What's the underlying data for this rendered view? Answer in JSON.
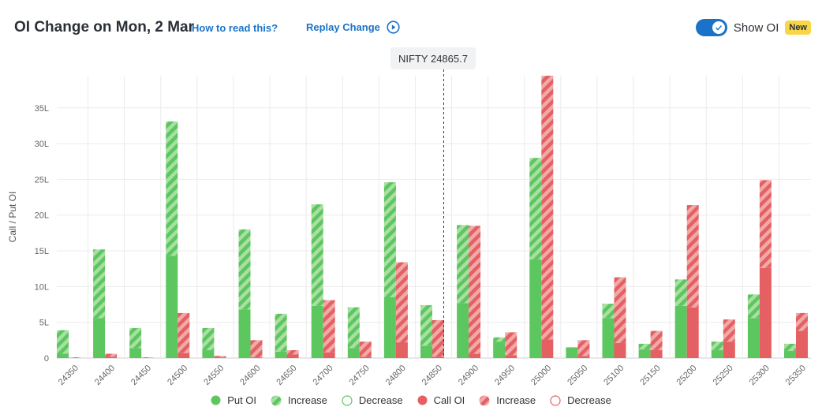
{
  "header": {
    "title": "OI Change on Mon, 2 Mar",
    "how_to_label": "How to read this?",
    "replay_label": "Replay Change",
    "show_oi_label": "Show OI",
    "new_badge": "New",
    "show_oi_on": true
  },
  "spot": {
    "label": "NIFTY 24865.7",
    "value": 24865.7
  },
  "colors": {
    "put": "#5cc65f",
    "put_light": "#a9dfa3",
    "call": "#e56062",
    "call_light": "#f0a9a9",
    "grid": "#ebebeb"
  },
  "chart_data": {
    "type": "bar",
    "ylabel": "Call / Put OI",
    "y_unit": "L",
    "ylim": [
      0,
      39.5
    ],
    "yticks": [
      0,
      5,
      10,
      15,
      20,
      25,
      30,
      35
    ],
    "ytick_labels": [
      "0",
      "5L",
      "10L",
      "15L",
      "20L",
      "25L",
      "30L",
      "35L"
    ],
    "categories": [
      "24350",
      "24400",
      "24450",
      "24500",
      "24550",
      "24600",
      "24650",
      "24700",
      "24750",
      "24800",
      "24850",
      "24900",
      "24950",
      "25000",
      "25050",
      "25100",
      "25150",
      "25200",
      "25250",
      "25300",
      "25350"
    ],
    "put_oi": [
      3.9,
      15.2,
      4.2,
      33.1,
      4.2,
      18.0,
      6.2,
      21.5,
      7.1,
      24.6,
      7.4,
      18.6,
      2.9,
      28.0,
      1.5,
      7.6,
      2.0,
      11.0,
      2.3,
      8.9,
      2.0
    ],
    "put_prev_oi": [
      0.6,
      5.6,
      1.4,
      14.3,
      1.1,
      6.8,
      0.9,
      7.3,
      1.4,
      8.5,
      1.7,
      7.7,
      2.3,
      13.8,
      1.5,
      5.6,
      1.2,
      7.3,
      1.1,
      5.6,
      1.0
    ],
    "call_oi": [
      0.1,
      0.6,
      0.1,
      6.3,
      0.3,
      2.5,
      1.1,
      8.1,
      2.3,
      13.4,
      5.3,
      18.5,
      3.6,
      39.5,
      2.5,
      11.3,
      3.8,
      21.4,
      5.4,
      24.9,
      6.3
    ],
    "call_prev_oi": [
      0.0,
      0.2,
      0.0,
      0.7,
      0.1,
      0.1,
      0.5,
      0.8,
      0.2,
      2.2,
      0.2,
      0.6,
      0.4,
      2.6,
      0.3,
      2.1,
      1.1,
      7.1,
      2.3,
      12.6,
      3.8
    ],
    "spot_marker_x": 24865.7,
    "legend": [
      "Put OI",
      "Increase",
      "Decrease",
      "Call OI",
      "Increase",
      "Decrease"
    ],
    "grid": true,
    "legend_position": "bottom"
  }
}
